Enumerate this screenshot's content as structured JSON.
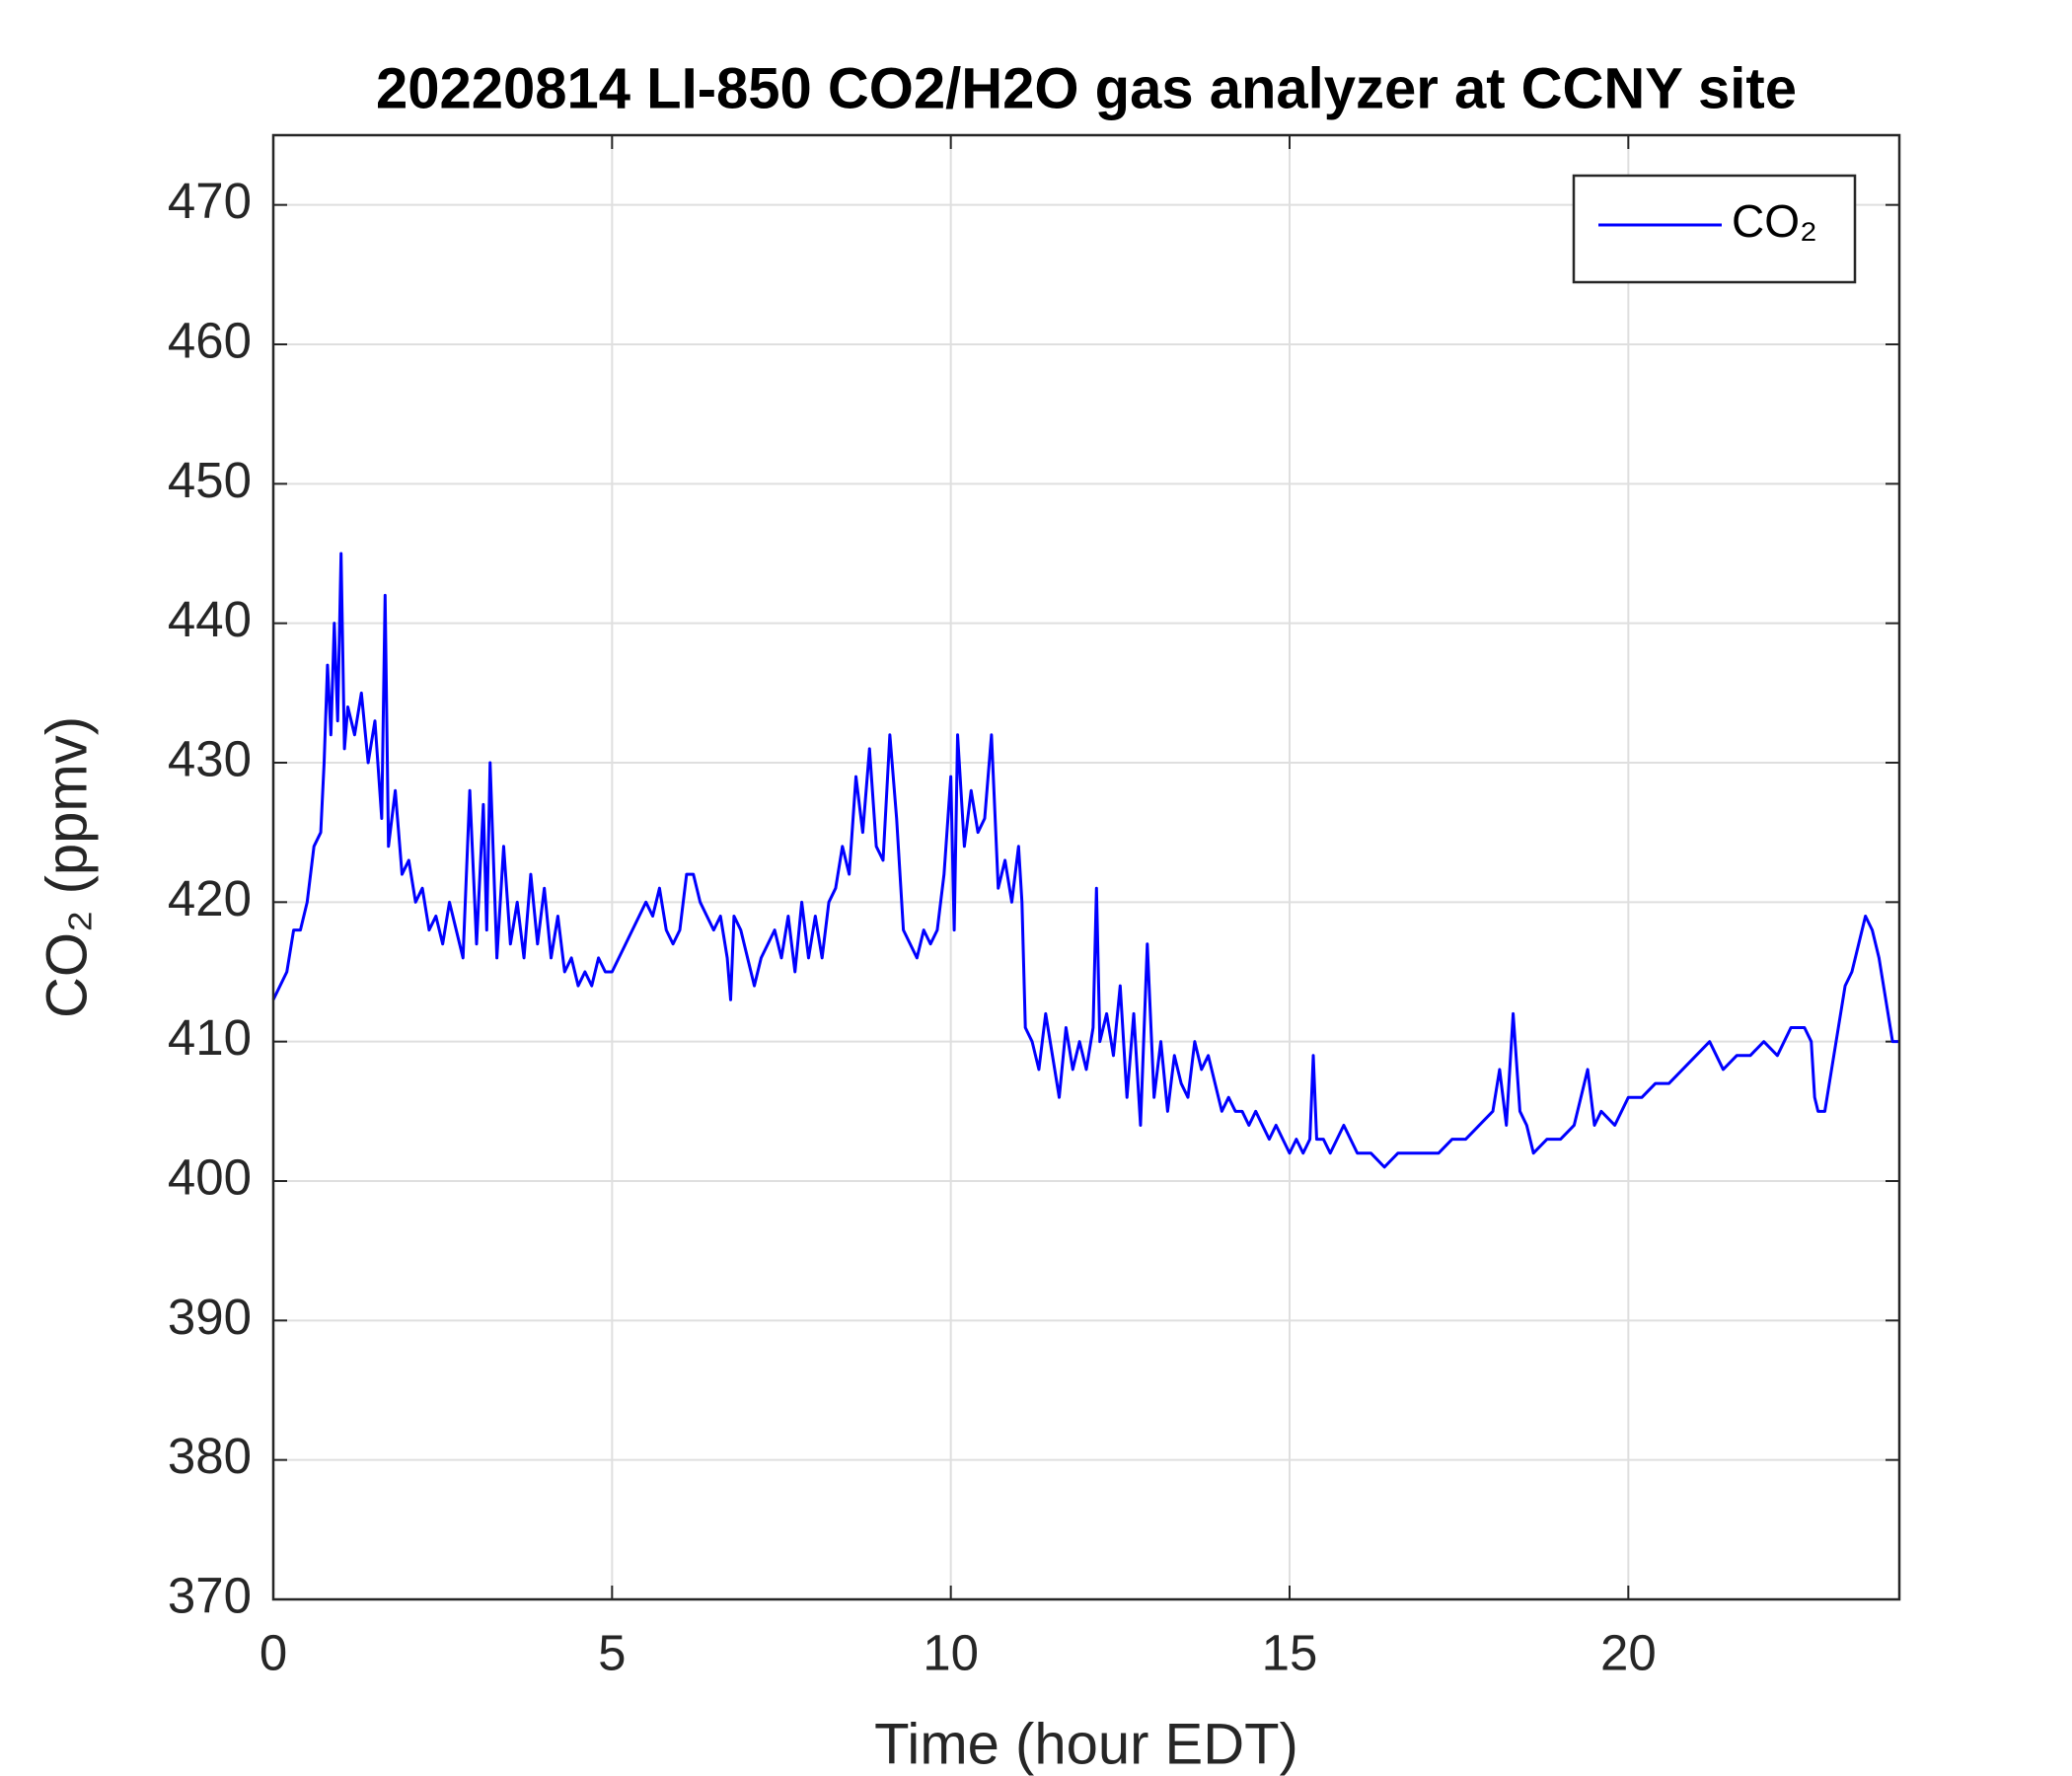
{
  "chart_data": {
    "type": "line",
    "title": "20220814 LI-850 CO2/H2O gas analyzer at CCNY site",
    "xlabel": "Time (hour EDT)",
    "ylabel": "CO₂ (ppmv)",
    "xlim": [
      0,
      24
    ],
    "xticks": [
      0,
      5,
      10,
      15,
      20
    ],
    "ylim": [
      370,
      475
    ],
    "yticks": [
      370,
      380,
      390,
      400,
      410,
      420,
      430,
      440,
      450,
      460,
      470
    ],
    "grid": true,
    "legend": "upper right",
    "x": [
      0,
      0.1,
      0.2,
      0.3,
      0.4,
      0.5,
      0.6,
      0.7,
      0.75,
      0.8,
      0.85,
      0.9,
      0.95,
      1.0,
      1.05,
      1.1,
      1.2,
      1.3,
      1.4,
      1.5,
      1.6,
      1.65,
      1.7,
      1.8,
      1.9,
      2.0,
      2.1,
      2.2,
      2.3,
      2.4,
      2.5,
      2.6,
      2.7,
      2.8,
      2.9,
      3.0,
      3.1,
      3.15,
      3.2,
      3.3,
      3.4,
      3.5,
      3.6,
      3.7,
      3.8,
      3.9,
      4.0,
      4.1,
      4.2,
      4.3,
      4.4,
      4.5,
      4.6,
      4.7,
      4.8,
      4.9,
      5.0,
      5.1,
      5.2,
      5.3,
      5.4,
      5.5,
      5.6,
      5.7,
      5.8,
      5.9,
      6.0,
      6.1,
      6.2,
      6.3,
      6.4,
      6.5,
      6.6,
      6.7,
      6.75,
      6.8,
      6.9,
      7.0,
      7.1,
      7.2,
      7.3,
      7.4,
      7.5,
      7.6,
      7.7,
      7.8,
      7.9,
      8.0,
      8.1,
      8.2,
      8.3,
      8.4,
      8.5,
      8.6,
      8.7,
      8.8,
      8.9,
      9.0,
      9.1,
      9.2,
      9.3,
      9.4,
      9.5,
      9.6,
      9.7,
      9.8,
      9.9,
      10.0,
      10.05,
      10.1,
      10.2,
      10.3,
      10.4,
      10.5,
      10.6,
      10.7,
      10.8,
      10.9,
      11.0,
      11.05,
      11.1,
      11.2,
      11.3,
      11.4,
      11.5,
      11.6,
      11.7,
      11.8,
      11.9,
      12.0,
      12.1,
      12.15,
      12.2,
      12.3,
      12.4,
      12.5,
      12.6,
      12.7,
      12.8,
      12.9,
      13.0,
      13.1,
      13.2,
      13.3,
      13.4,
      13.5,
      13.6,
      13.7,
      13.8,
      13.9,
      14.0,
      14.1,
      14.2,
      14.3,
      14.4,
      14.5,
      14.6,
      14.7,
      14.8,
      14.9,
      15.0,
      15.1,
      15.2,
      15.3,
      15.35,
      15.4,
      15.5,
      15.6,
      15.7,
      15.8,
      15.9,
      16.0,
      16.2,
      16.4,
      16.6,
      16.8,
      17.0,
      17.2,
      17.4,
      17.6,
      17.8,
      18.0,
      18.1,
      18.2,
      18.3,
      18.4,
      18.5,
      18.6,
      18.8,
      19.0,
      19.2,
      19.4,
      19.5,
      19.6,
      19.8,
      20.0,
      20.2,
      20.4,
      20.6,
      20.8,
      21.0,
      21.2,
      21.4,
      21.6,
      21.8,
      22.0,
      22.2,
      22.4,
      22.6,
      22.7,
      22.75,
      22.8,
      22.9,
      23.0,
      23.1,
      23.2,
      23.3,
      23.4,
      23.5,
      23.6,
      23.7,
      23.8,
      23.9,
      24.0
    ],
    "series": [
      {
        "name": "CO₂",
        "color": "#0000ff",
        "values": [
          413,
          414,
          415,
          418,
          418,
          420,
          424,
          425,
          430,
          437,
          432,
          440,
          433,
          445,
          431,
          434,
          432,
          435,
          430,
          433,
          426,
          442,
          424,
          428,
          422,
          423,
          420,
          421,
          418,
          419,
          417,
          420,
          418,
          416,
          428,
          417,
          427,
          418,
          430,
          416,
          424,
          417,
          420,
          416,
          422,
          417,
          421,
          416,
          419,
          415,
          416,
          414,
          415,
          414,
          416,
          415,
          415,
          416,
          417,
          418,
          419,
          420,
          419,
          421,
          418,
          417,
          418,
          422,
          422,
          420,
          419,
          418,
          419,
          416,
          413,
          419,
          418,
          416,
          414,
          416,
          417,
          418,
          416,
          419,
          415,
          420,
          416,
          419,
          416,
          420,
          421,
          424,
          422,
          429,
          425,
          431,
          424,
          423,
          432,
          426,
          418,
          417,
          416,
          418,
          417,
          418,
          422,
          429,
          418,
          432,
          424,
          428,
          425,
          426,
          432,
          421,
          423,
          420,
          424,
          420,
          411,
          410,
          408,
          412,
          409,
          406,
          411,
          408,
          410,
          408,
          411,
          421,
          410,
          412,
          409,
          414,
          406,
          412,
          404,
          417,
          406,
          410,
          405,
          409,
          407,
          406,
          410,
          408,
          409,
          407,
          405,
          406,
          405,
          405,
          404,
          405,
          404,
          403,
          404,
          403,
          402,
          403,
          402,
          403,
          409,
          403,
          403,
          402,
          403,
          404,
          403,
          402,
          402,
          401,
          402,
          402,
          402,
          402,
          403,
          403,
          404,
          405,
          408,
          404,
          412,
          405,
          404,
          402,
          403,
          403,
          404,
          408,
          404,
          405,
          404,
          406,
          406,
          407,
          407,
          408,
          409,
          410,
          408,
          409,
          409,
          410,
          409,
          411,
          411,
          410,
          406,
          405,
          405,
          408,
          411,
          414,
          415,
          417,
          419,
          418,
          416,
          413,
          410,
          410
        ]
      }
    ]
  }
}
